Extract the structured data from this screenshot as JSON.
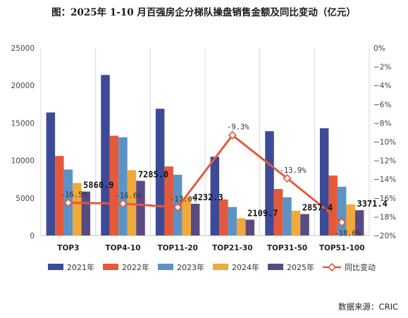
{
  "chart_data": {
    "type": "bar",
    "title": "图：2025年 1-10 月百强房企分梯队操盘销售金额及同比变动（亿元）",
    "categories": [
      "TOP3",
      "TOP4-10",
      "TOP11-20",
      "TOP21-30",
      "TOP31-50",
      "TOP51-100"
    ],
    "series": [
      {
        "name": "2021年",
        "type": "bar",
        "color": "#3d4a97",
        "values": [
          16400,
          21400,
          16900,
          10500,
          13900,
          14300
        ]
      },
      {
        "name": "2022年",
        "type": "bar",
        "color": "#e4593a",
        "values": [
          10600,
          13300,
          9200,
          4800,
          6200,
          8000
        ]
      },
      {
        "name": "2023年",
        "type": "bar",
        "color": "#5b93c7",
        "values": [
          8800,
          13100,
          8100,
          3800,
          5100,
          6500
        ]
      },
      {
        "name": "2024年",
        "type": "bar",
        "color": "#f0a93b",
        "values": [
          7000,
          8700,
          5100,
          2300,
          3300,
          4150
        ]
      },
      {
        "name": "2025年",
        "type": "bar",
        "color": "#5a4a82",
        "values": [
          5860.9,
          7285.0,
          4232.3,
          2109.7,
          2857.4,
          3371.4
        ]
      },
      {
        "name": "同比变动",
        "type": "line",
        "axis": "right",
        "color": "#e4593a",
        "values": [
          -16.5,
          -16.6,
          -17.0,
          -9.3,
          -13.9,
          -18.6
        ]
      }
    ],
    "bar_labels": [
      "5860.9",
      "7285.0",
      "4232.3",
      "2109.7",
      "2857.4",
      "3371.4"
    ],
    "line_labels": [
      "-16.5%",
      "-16.6%",
      "-17.0%",
      "-9.3%",
      "-13.9%",
      "-18.6%"
    ],
    "y_left": {
      "ylim": [
        0,
        25000
      ],
      "ticks": [
        "0",
        "5000",
        "10000",
        "15000",
        "20000",
        "25000"
      ]
    },
    "y_right": {
      "ylim": [
        -20,
        0
      ],
      "ticks": [
        "0%",
        "−2%",
        "−4%",
        "−6%",
        "−8%",
        "−10%",
        "−12%",
        "−14%",
        "−16%",
        "−18%",
        "−20%"
      ]
    },
    "grid": "vertical",
    "legend_position": "bottom"
  },
  "source": "数据来源：CRIC"
}
